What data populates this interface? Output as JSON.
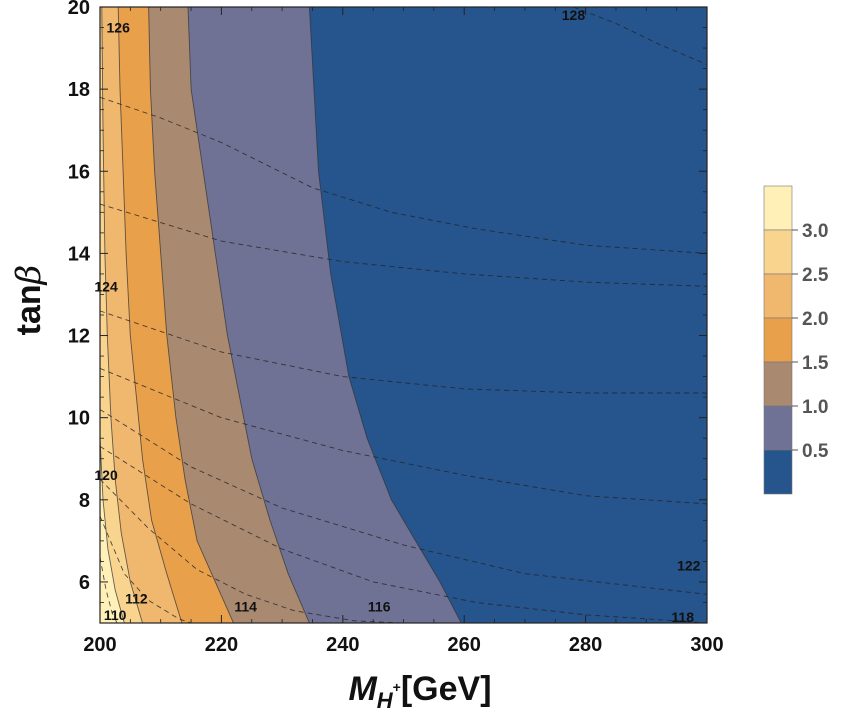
{
  "chart_data": {
    "type": "contour",
    "xlabel": {
      "main": "M",
      "sub": "H",
      "sup": "+",
      "unit": "[GeV]"
    },
    "ylabel": {
      "main": "tan",
      "greek": "β"
    },
    "xlim": [
      200,
      300
    ],
    "ylim": [
      5,
      20
    ],
    "xticks": [
      200,
      220,
      240,
      260,
      280,
      300
    ],
    "yticks": [
      6,
      8,
      10,
      12,
      14,
      16,
      18,
      20
    ],
    "colors": {
      "band_0_05": "#26548d",
      "band_05_1": "#6f7294",
      "band_1_15": "#a9896f",
      "band_15_2": "#e9a04b",
      "band_2_25": "#f0b76f",
      "band_25_3": "#f8d48f",
      "band_3_up": "#fff0b8",
      "frame": "#222222"
    },
    "filled_contours": [
      {
        "level": 0.5,
        "points": [
          [
            234.5,
            20
          ],
          [
            236,
            16
          ],
          [
            238,
            13.5
          ],
          [
            241,
            11
          ],
          [
            244,
            9.5
          ],
          [
            248,
            8
          ],
          [
            252,
            7
          ],
          [
            256,
            6
          ],
          [
            259.5,
            5
          ]
        ]
      },
      {
        "level": 1.0,
        "points": [
          [
            214.5,
            20
          ],
          [
            215,
            18
          ],
          [
            217,
            16
          ],
          [
            219,
            14
          ],
          [
            221,
            12
          ],
          [
            223,
            10.5
          ],
          [
            225,
            9
          ],
          [
            228,
            7.5
          ],
          [
            231,
            6.2
          ],
          [
            234.5,
            5
          ]
        ]
      },
      {
        "level": 1.5,
        "points": [
          [
            208,
            20
          ],
          [
            208.3,
            18
          ],
          [
            209,
            16
          ],
          [
            210,
            14
          ],
          [
            211,
            12
          ],
          [
            212.5,
            10
          ],
          [
            214,
            8.5
          ],
          [
            216,
            7
          ],
          [
            219,
            6
          ],
          [
            222,
            5
          ]
        ]
      },
      {
        "level": 2.0,
        "points": [
          [
            203,
            20
          ],
          [
            203.3,
            18
          ],
          [
            203.8,
            16
          ],
          [
            204.3,
            14
          ],
          [
            205,
            12
          ],
          [
            206,
            10.5
          ],
          [
            207,
            9
          ],
          [
            208.5,
            7.5
          ],
          [
            211,
            6.2
          ],
          [
            213.5,
            5
          ]
        ]
      },
      {
        "level": 2.5,
        "points": [
          [
            200.3,
            20
          ],
          [
            200.5,
            17
          ],
          [
            200.8,
            14
          ],
          [
            201.2,
            12
          ],
          [
            201.8,
            10
          ],
          [
            202.5,
            8.5
          ],
          [
            203.5,
            7.2
          ],
          [
            205,
            6
          ],
          [
            207,
            5
          ]
        ]
      },
      {
        "level": 3.0,
        "points": [
          [
            200,
            9.5
          ],
          [
            200.5,
            8
          ],
          [
            201.3,
            6.8
          ],
          [
            202.5,
            5.8
          ],
          [
            204,
            5
          ]
        ]
      }
    ],
    "dashed_contours": [
      {
        "label": "110",
        "label_at": [
          202.5,
          5.2
        ],
        "points": [
          [
            200,
            6.6
          ],
          [
            201,
            5.8
          ],
          [
            202,
            5.25
          ],
          [
            202.8,
            5
          ]
        ]
      },
      {
        "label": "112",
        "label_at": [
          206,
          5.6
        ],
        "points": [
          [
            200,
            7.6
          ],
          [
            204,
            6.2
          ],
          [
            208,
            5.55
          ],
          [
            213,
            5.1
          ],
          [
            215,
            5
          ]
        ]
      },
      {
        "label": "114",
        "label_at": [
          224,
          5.4
        ],
        "points": [
          [
            200,
            8.5
          ],
          [
            208,
            7.3
          ],
          [
            216,
            6.3
          ],
          [
            224,
            5.7
          ],
          [
            232,
            5.3
          ],
          [
            242,
            5.05
          ],
          [
            250,
            5
          ]
        ]
      },
      {
        "label": "116",
        "label_at": [
          246,
          5.4
        ],
        "points": [
          [
            200,
            9.3
          ],
          [
            215,
            7.9
          ],
          [
            230,
            6.8
          ],
          [
            245,
            6.0
          ],
          [
            262,
            5.5
          ],
          [
            280,
            5.2
          ],
          [
            300,
            5.0
          ]
        ]
      },
      {
        "label": "118",
        "label_at": [
          296,
          5.15
        ],
        "points": [
          [
            200,
            10.2
          ],
          [
            215,
            8.8
          ],
          [
            230,
            7.8
          ],
          [
            250,
            6.9
          ],
          [
            270,
            6.2
          ],
          [
            300,
            5.7
          ]
        ]
      },
      {
        "label": "120",
        "label_at": [
          201,
          8.6
        ],
        "points": [
          [
            200,
            11.2
          ],
          [
            220,
            10
          ],
          [
            240,
            9.2
          ],
          [
            260,
            8.6
          ],
          [
            280,
            8.1
          ],
          [
            300,
            7.9
          ]
        ]
      },
      {
        "label": "122",
        "label_at": [
          297,
          6.4
        ],
        "points": [
          [
            200,
            12.6
          ],
          [
            220,
            11.6
          ],
          [
            240,
            11.0
          ],
          [
            260,
            10.7
          ],
          [
            280,
            10.6
          ],
          [
            300,
            10.6
          ]
        ]
      },
      {
        "label": "124",
        "label_at": [
          201,
          13.2
        ],
        "points": [
          [
            200,
            15.2
          ],
          [
            220,
            14.3
          ],
          [
            240,
            13.8
          ],
          [
            260,
            13.5
          ],
          [
            280,
            13.3
          ],
          [
            300,
            13.2
          ]
        ]
      },
      {
        "label": "126",
        "label_at": [
          203,
          19.5
        ],
        "points": [
          [
            200,
            17.8
          ],
          [
            210,
            17.3
          ],
          [
            220,
            16.7
          ],
          [
            235,
            15.6
          ],
          [
            248,
            15.0
          ],
          [
            262,
            14.6
          ],
          [
            280,
            14.2
          ],
          [
            300,
            14.0
          ]
        ]
      },
      {
        "label": "128",
        "label_at": [
          278,
          19.8
        ],
        "points": [
          [
            278,
            20
          ],
          [
            285,
            19.6
          ],
          [
            292,
            19.1
          ],
          [
            300,
            18.6
          ]
        ]
      }
    ],
    "colorbar": {
      "ticks": [
        "3.0",
        "2.5",
        "2.0",
        "1.5",
        "1.0",
        "0.5"
      ],
      "bands": [
        "#fff0b8",
        "#f8d48f",
        "#f0b76f",
        "#e9a04b",
        "#a9896f",
        "#6f7294",
        "#26548d"
      ]
    },
    "grid": false
  }
}
